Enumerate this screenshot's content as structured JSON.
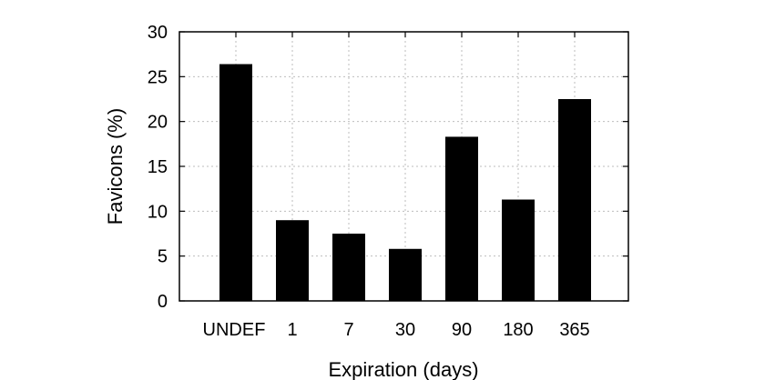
{
  "chart_data": {
    "type": "bar",
    "title": "",
    "xlabel": "Expiration (days)",
    "ylabel": "Favicons (%)",
    "ylim": [
      0,
      30
    ],
    "yticks": [
      0,
      5,
      10,
      15,
      20,
      25,
      30
    ],
    "grid": true,
    "categories": [
      "UNDEF",
      "1",
      "7",
      "30",
      "90",
      "180",
      "365"
    ],
    "values": [
      26.4,
      9.0,
      7.5,
      5.8,
      18.3,
      11.3,
      22.5
    ],
    "bar_color": "#000000",
    "grid_color": "#bdbdbd"
  }
}
